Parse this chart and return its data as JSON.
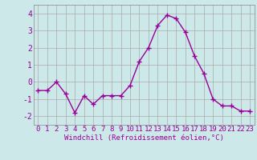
{
  "x": [
    0,
    1,
    2,
    3,
    4,
    5,
    6,
    7,
    8,
    9,
    10,
    11,
    12,
    13,
    14,
    15,
    16,
    17,
    18,
    19,
    20,
    21,
    22,
    23
  ],
  "y": [
    -0.5,
    -0.5,
    0.0,
    -0.7,
    -1.8,
    -0.8,
    -1.3,
    -0.8,
    -0.8,
    -0.8,
    -0.2,
    1.2,
    2.0,
    3.3,
    3.9,
    3.7,
    2.9,
    1.5,
    0.5,
    -1.0,
    -1.4,
    -1.4,
    -1.7,
    -1.7
  ],
  "line_color": "#990099",
  "marker": "+",
  "marker_size": 4,
  "marker_lw": 1.0,
  "line_width": 1.0,
  "bg_color": "#cce8e8",
  "grid_color": "#aaaaaa",
  "xlabel": "Windchill (Refroidissement éolien,°C)",
  "xlabel_color": "#990099",
  "tick_color": "#990099",
  "label_fontsize": 6.5,
  "xlabel_fontsize": 6.5,
  "ytick_fontsize": 7.0,
  "ylim": [
    -2.5,
    4.5
  ],
  "xlim": [
    -0.5,
    23.5
  ],
  "yticks": [
    -2,
    -1,
    0,
    1,
    2,
    3,
    4
  ],
  "xticks": [
    0,
    1,
    2,
    3,
    4,
    5,
    6,
    7,
    8,
    9,
    10,
    11,
    12,
    13,
    14,
    15,
    16,
    17,
    18,
    19,
    20,
    21,
    22,
    23
  ],
  "xtick_labels": [
    "0",
    "1",
    "2",
    "3",
    "4",
    "5",
    "6",
    "7",
    "8",
    "9",
    "10",
    "11",
    "12",
    "13",
    "14",
    "15",
    "16",
    "17",
    "18",
    "19",
    "20",
    "21",
    "22",
    "23"
  ],
  "spine_color": "#888888"
}
